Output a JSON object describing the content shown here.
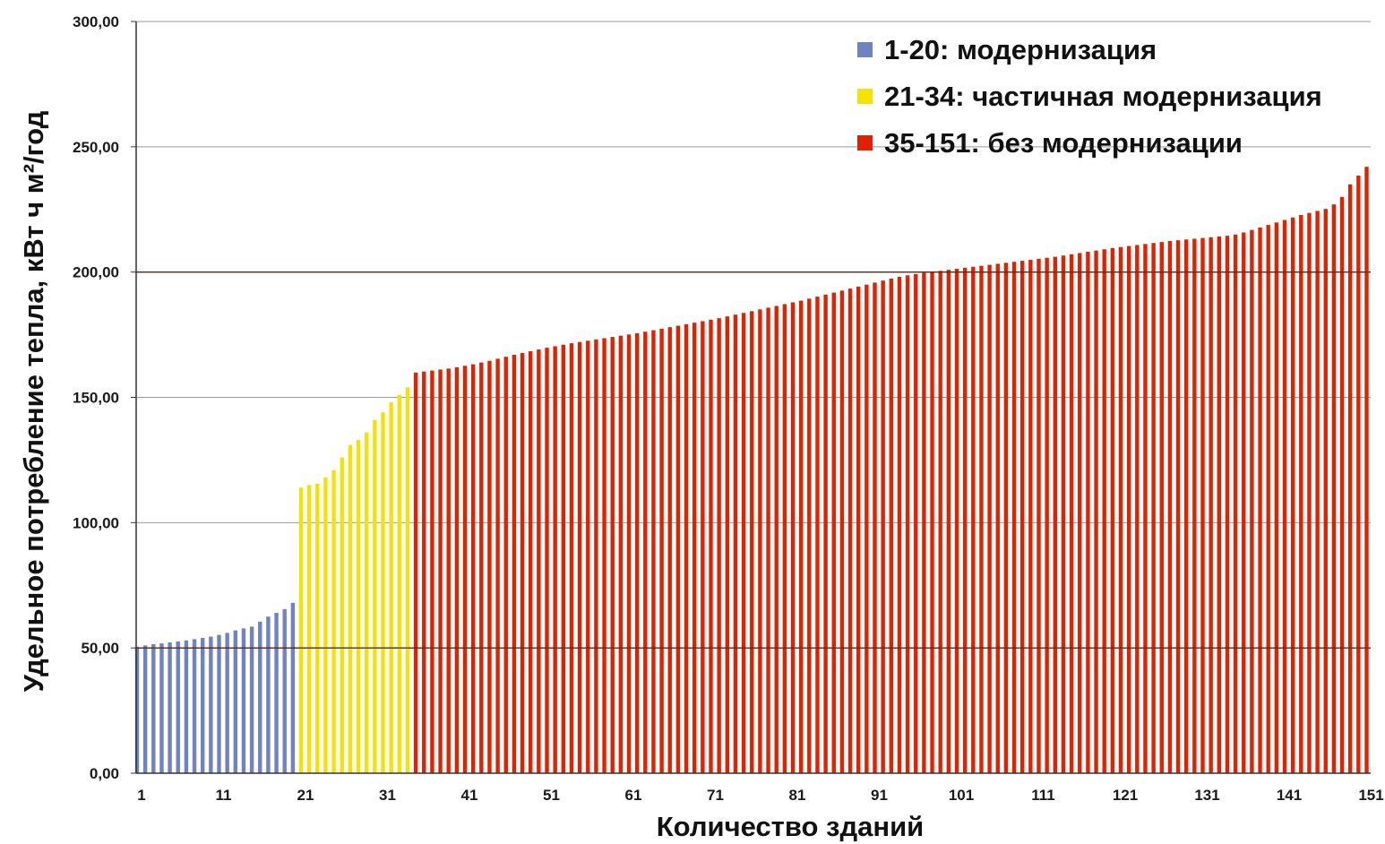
{
  "chart_data": {
    "type": "bar",
    "title": "",
    "ylabel": "Удельное потребление тепла, кВт ч м²/год",
    "xlabel": "Количество зданий",
    "ylim": [
      0,
      300
    ],
    "y_ticks": [
      "0,00",
      "50,00",
      "100,00",
      "150,00",
      "200,00",
      "250,00",
      "300,00"
    ],
    "x_ticks": [
      "1",
      "11",
      "21",
      "31",
      "41",
      "51",
      "61",
      "71",
      "81",
      "91",
      "101",
      "111",
      "121",
      "131",
      "141",
      "151"
    ],
    "reference_lines": [
      50,
      200
    ],
    "grid": "horizontal",
    "legend_position": "top-right",
    "series": [
      {
        "name": "1-20: модернизация",
        "color": "#6f82c4",
        "start": 1,
        "values": [
          50.5,
          51.0,
          51.5,
          51.8,
          52.2,
          52.6,
          53.0,
          53.5,
          54.0,
          54.5,
          55.2,
          56.0,
          57.0,
          57.8,
          58.5,
          60.5,
          62.5,
          64.0,
          65.5,
          68.0
        ]
      },
      {
        "name": "21-34: частичная модернизация",
        "color": "#f5e200",
        "start": 21,
        "values": [
          114,
          115,
          115.5,
          118,
          121,
          126,
          131,
          133,
          136,
          141,
          144,
          148,
          151,
          154
        ]
      },
      {
        "name": "35-151: без модернизации",
        "color": "#e32000",
        "start": 35,
        "values": [
          159.9,
          160.3,
          160.7,
          161.1,
          161.5,
          162.0,
          162.6,
          163.2,
          163.9,
          164.6,
          165.4,
          166.2,
          167.0,
          167.7,
          168.4,
          169.1,
          169.8,
          170.4,
          171.0,
          171.6,
          172.1,
          172.6,
          173.1,
          173.6,
          174.1,
          174.6,
          175.1,
          175.6,
          176.2,
          176.8,
          177.4,
          178.0,
          178.6,
          179.2,
          179.8,
          180.4,
          181.0,
          181.6,
          182.3,
          183.0,
          183.7,
          184.4,
          185.1,
          185.8,
          186.5,
          187.2,
          187.9,
          188.6,
          189.4,
          190.2,
          191.0,
          191.8,
          192.6,
          193.4,
          194.2,
          195.0,
          195.8,
          196.6,
          197.4,
          198.1,
          198.7,
          199.2,
          199.7,
          200.1,
          200.5,
          200.9,
          201.3,
          201.7,
          202.1,
          202.5,
          202.9,
          203.3,
          203.7,
          204.1,
          204.5,
          204.9,
          205.3,
          205.7,
          206.1,
          206.6,
          207.1,
          207.6,
          208.1,
          208.6,
          209.1,
          209.6,
          210.0,
          210.4,
          210.8,
          211.2,
          211.6,
          212.0,
          212.4,
          212.7,
          213.0,
          213.3,
          213.6,
          213.9,
          214.2,
          214.5,
          215.0,
          215.8,
          216.8,
          217.8,
          218.8,
          219.8,
          220.8,
          221.8,
          222.8,
          223.6,
          224.4,
          225.2,
          227.0,
          230.0,
          235.0,
          238.5,
          242.0
        ]
      }
    ]
  }
}
